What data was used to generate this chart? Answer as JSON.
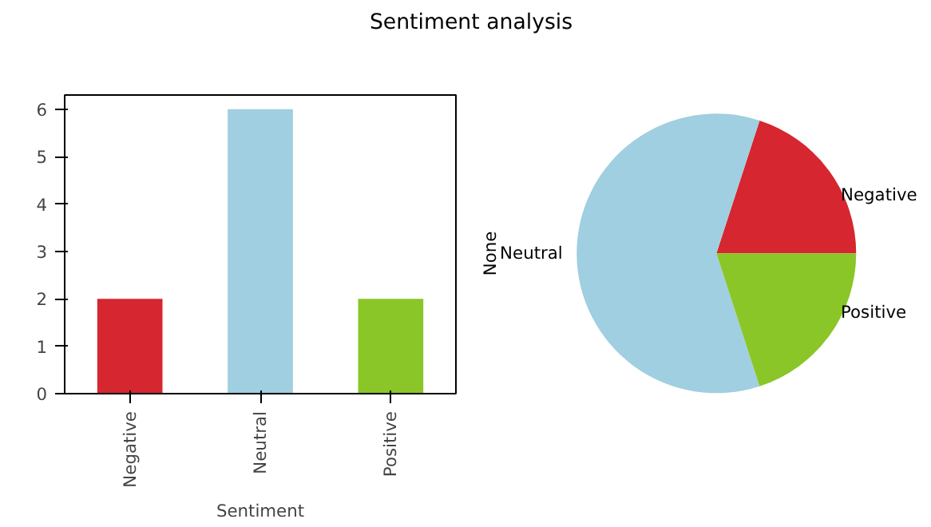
{
  "chart_data": [
    {
      "type": "bar",
      "title": "Sentiment analysis",
      "categories": [
        "Negative",
        "Neutral",
        "Positive"
      ],
      "values": [
        2,
        6,
        2
      ],
      "colors": [
        "#d62630",
        "#9fcfe0",
        "#8ac628"
      ],
      "xlabel": "Sentiment",
      "ylim": [
        0,
        6.3
      ],
      "yticks": [
        0,
        1,
        2,
        3,
        4,
        5,
        6
      ],
      "grid": false
    },
    {
      "type": "pie",
      "categories": [
        "Negative",
        "Neutral",
        "Positive"
      ],
      "values": [
        20,
        60,
        20
      ],
      "colors": [
        "#d62630",
        "#9fcfe0",
        "#8ac628"
      ],
      "ylabel": "None"
    }
  ]
}
